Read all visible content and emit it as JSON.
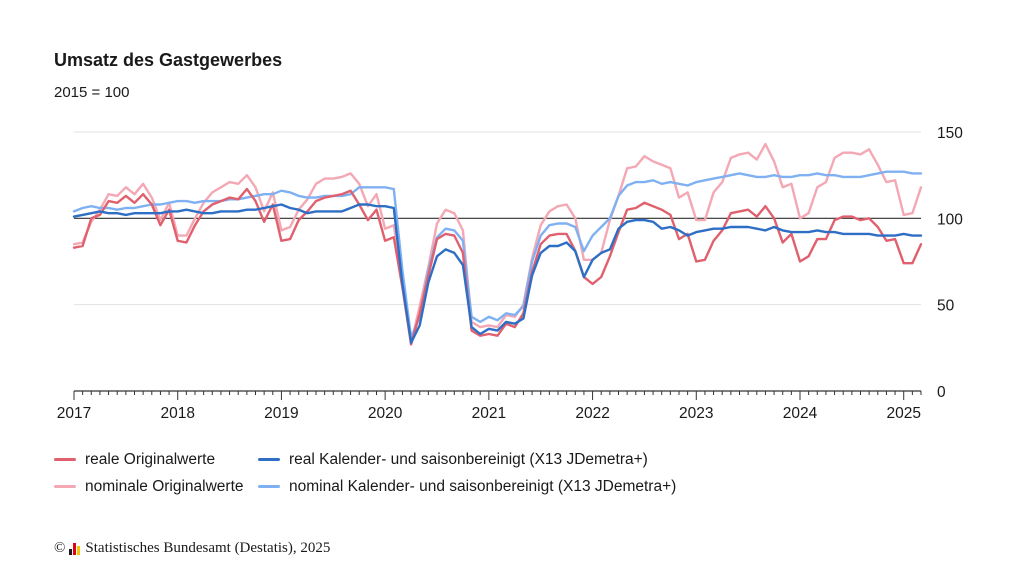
{
  "chart_data": {
    "type": "line",
    "title": "Umsatz des Gastgewerbes",
    "subtitle": "2015 = 100",
    "ylim": [
      0,
      150
    ],
    "y_ticks": [
      0,
      50,
      100,
      150
    ],
    "x_ticks": [
      "2017",
      "2018",
      "2019",
      "2020",
      "2021",
      "2022",
      "2023",
      "2024",
      "2025"
    ],
    "x_start": "2017-01",
    "reference_line": 100,
    "y_axis_side": "right",
    "grid": true,
    "legend_position": "bottom",
    "series": [
      {
        "name": "reale Originalwerte",
        "color": "#e0606e",
        "values": [
          83,
          84,
          100,
          102,
          110,
          109,
          113,
          109,
          114,
          108,
          96,
          105,
          87,
          86,
          96,
          104,
          108,
          110,
          112,
          111,
          117,
          110,
          98,
          108,
          87,
          88,
          99,
          104,
          110,
          112,
          113,
          114,
          116,
          108,
          99,
          105,
          87,
          89,
          60,
          27,
          45,
          67,
          88,
          91,
          90,
          80,
          35,
          32,
          33,
          32,
          39,
          37,
          45,
          69,
          85,
          90,
          91,
          91,
          81,
          66,
          62,
          66,
          78,
          92,
          105,
          106,
          109,
          107,
          105,
          102,
          88,
          91,
          75,
          76,
          87,
          93,
          103,
          104,
          105,
          101,
          107,
          100,
          86,
          91,
          75,
          78,
          88,
          88,
          99,
          101,
          101,
          99,
          100,
          95,
          87,
          88,
          74,
          74,
          85
        ],
        "marks": []
      },
      {
        "name": "real Kalender- und saisonbereinigt (X13 JDemetra+)",
        "color": "#2e6ec4",
        "values": [
          101,
          102,
          103,
          104,
          103,
          103,
          102,
          103,
          103,
          103,
          103,
          104,
          104,
          105,
          104,
          103,
          103,
          104,
          104,
          104,
          105,
          105,
          106,
          107,
          108,
          106,
          105,
          103,
          104,
          104,
          104,
          104,
          106,
          108,
          108,
          107,
          107,
          106,
          62,
          28,
          38,
          63,
          78,
          82,
          80,
          73,
          37,
          33,
          36,
          35,
          40,
          39,
          42,
          67,
          80,
          84,
          84,
          86,
          81,
          66,
          76,
          80,
          82,
          94,
          98,
          99,
          99,
          98,
          94,
          95,
          93,
          90,
          92,
          93,
          94,
          94,
          95,
          95,
          95,
          94,
          93,
          95,
          93,
          92,
          92,
          92,
          93,
          92,
          92,
          91,
          91,
          91,
          91,
          90,
          90,
          90,
          91,
          90,
          90
        ],
        "marks": []
      },
      {
        "name": "nominale Originalwerte",
        "color": "#f4a8b4",
        "values": [
          85,
          86,
          98,
          105,
          114,
          113,
          118,
          114,
          120,
          112,
          99,
          109,
          90,
          90,
          100,
          109,
          115,
          118,
          121,
          120,
          125,
          118,
          104,
          115,
          93,
          95,
          105,
          111,
          120,
          123,
          123,
          124,
          126,
          120,
          107,
          114,
          94,
          96,
          63,
          28,
          49,
          72,
          97,
          105,
          103,
          93,
          40,
          37,
          38,
          37,
          44,
          43,
          50,
          77,
          96,
          104,
          107,
          108,
          100,
          76,
          76,
          80,
          99,
          113,
          129,
          130,
          136,
          133,
          131,
          129,
          112,
          115,
          99,
          99,
          115,
          121,
          135,
          137,
          138,
          134,
          143,
          133,
          118,
          120,
          100,
          103,
          118,
          121,
          135,
          138,
          138,
          137,
          140,
          131,
          121,
          122,
          102,
          103,
          118
        ],
        "marks": []
      },
      {
        "name": "nominal Kalender- und saisonbereinigt (X13 JDemetra+)",
        "color": "#7fb1f2",
        "values": [
          104,
          106,
          107,
          106,
          106,
          105,
          106,
          106,
          107,
          108,
          108,
          109,
          110,
          110,
          109,
          110,
          110,
          110,
          111,
          111,
          112,
          113,
          114,
          114,
          116,
          115,
          113,
          112,
          112,
          113,
          113,
          113,
          114,
          118,
          118,
          118,
          118,
          117,
          70,
          31,
          43,
          70,
          89,
          94,
          93,
          87,
          43,
          40,
          43,
          41,
          45,
          44,
          49,
          75,
          90,
          96,
          97,
          97,
          95,
          81,
          90,
          95,
          100,
          113,
          119,
          121,
          121,
          122,
          120,
          121,
          120,
          119,
          121,
          122,
          123,
          124,
          125,
          126,
          125,
          124,
          124,
          125,
          124,
          124,
          125,
          125,
          126,
          125,
          125,
          124,
          124,
          124,
          125,
          126,
          127,
          127,
          127,
          126,
          126
        ],
        "marks": []
      }
    ]
  },
  "legend": {
    "items": [
      {
        "label": "reale Originalwerte"
      },
      {
        "label": "real Kalender- und saisonbereinigt (X13 JDemetra+)"
      },
      {
        "label": "nominale Originalwerte"
      },
      {
        "label": "nominal Kalender- und saisonbereinigt (X13 JDemetra+)"
      }
    ]
  },
  "footer": {
    "copyright": "©",
    "source": "Statistisches Bundesamt (Destatis), 2025",
    "logo_colors": [
      "#1a1a1a",
      "#e2001a",
      "#f5c400"
    ]
  }
}
